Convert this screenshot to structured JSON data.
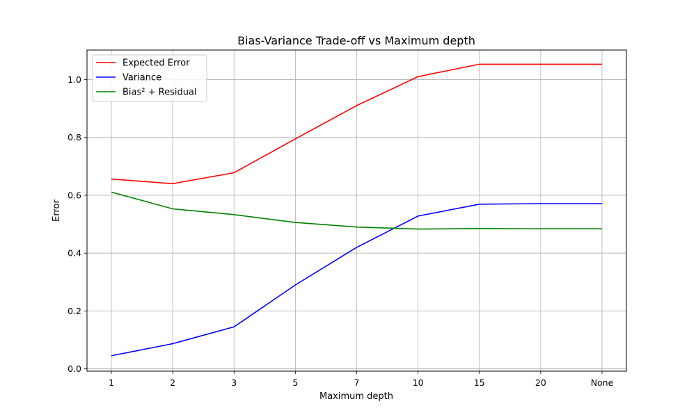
{
  "chart_data": {
    "type": "line",
    "title": "Bias-Variance Trade-off vs Maximum depth",
    "xlabel": "Maximum depth",
    "ylabel": "Error",
    "categories": [
      "1",
      "2",
      "3",
      "5",
      "7",
      "10",
      "15",
      "20",
      "None"
    ],
    "yticks": [
      0.0,
      0.2,
      0.4,
      0.6,
      0.8,
      1.0
    ],
    "ytick_labels": [
      "0.0",
      "0.2",
      "0.4",
      "0.6",
      "0.8",
      "1.0"
    ],
    "ylim": [
      -0.008,
      1.102
    ],
    "grid": true,
    "legend_position": "top-left",
    "series": [
      {
        "name": "Expected Error",
        "color": "#ff0000",
        "values": [
          0.656,
          0.64,
          0.678,
          0.795,
          0.91,
          1.01,
          1.053,
          1.053,
          1.053
        ]
      },
      {
        "name": "Variance",
        "color": "#0000ff",
        "values": [
          0.045,
          0.087,
          0.145,
          0.29,
          0.42,
          0.528,
          0.569,
          0.571,
          0.571
        ]
      },
      {
        "name": "Bias² + Residual",
        "color": "#008000",
        "values": [
          0.611,
          0.553,
          0.533,
          0.506,
          0.49,
          0.483,
          0.485,
          0.484,
          0.484
        ]
      }
    ]
  }
}
